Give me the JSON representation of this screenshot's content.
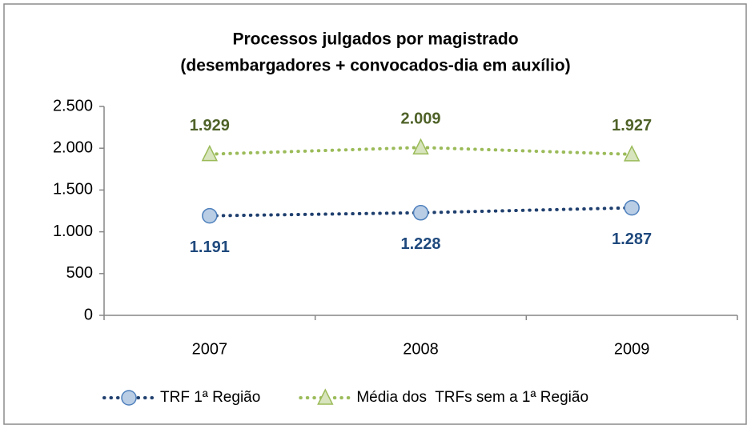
{
  "chart_data": {
    "type": "line",
    "title": [
      "Processos julgados por magistrado",
      "(desembargadores + convocados-dia em auxílio)"
    ],
    "categories": [
      "2007",
      "2008",
      "2009"
    ],
    "series": [
      {
        "name": "TRF 1ª Região",
        "color": "#1f3f6e",
        "marker": "circle",
        "marker_fill": "#b9cde5",
        "marker_stroke": "#4f81bd",
        "label_color": "#1f497d",
        "values": [
          1191,
          1228,
          1287
        ],
        "value_labels": [
          "1.191",
          "1.228",
          "1.287"
        ]
      },
      {
        "name": "Média dos  TRFs sem a 1ª Região",
        "color": "#9bbb59",
        "marker": "triangle",
        "marker_fill": "#d7e4bd",
        "marker_stroke": "#9bbb59",
        "label_color": "#4f6228",
        "values": [
          1929,
          2009,
          1927
        ],
        "value_labels": [
          "1.929",
          "2.009",
          "1.927"
        ]
      }
    ],
    "ylim": [
      0,
      2500
    ],
    "yticks": [
      0,
      500,
      {
        "value": 1000,
        "label": "1.000"
      },
      {
        "value": 1500,
        "label": "1.500"
      },
      {
        "value": 2000,
        "label": "2.000"
      },
      {
        "value": 2500,
        "label": "2.500"
      }
    ],
    "grid": false,
    "legend": "bottom"
  }
}
